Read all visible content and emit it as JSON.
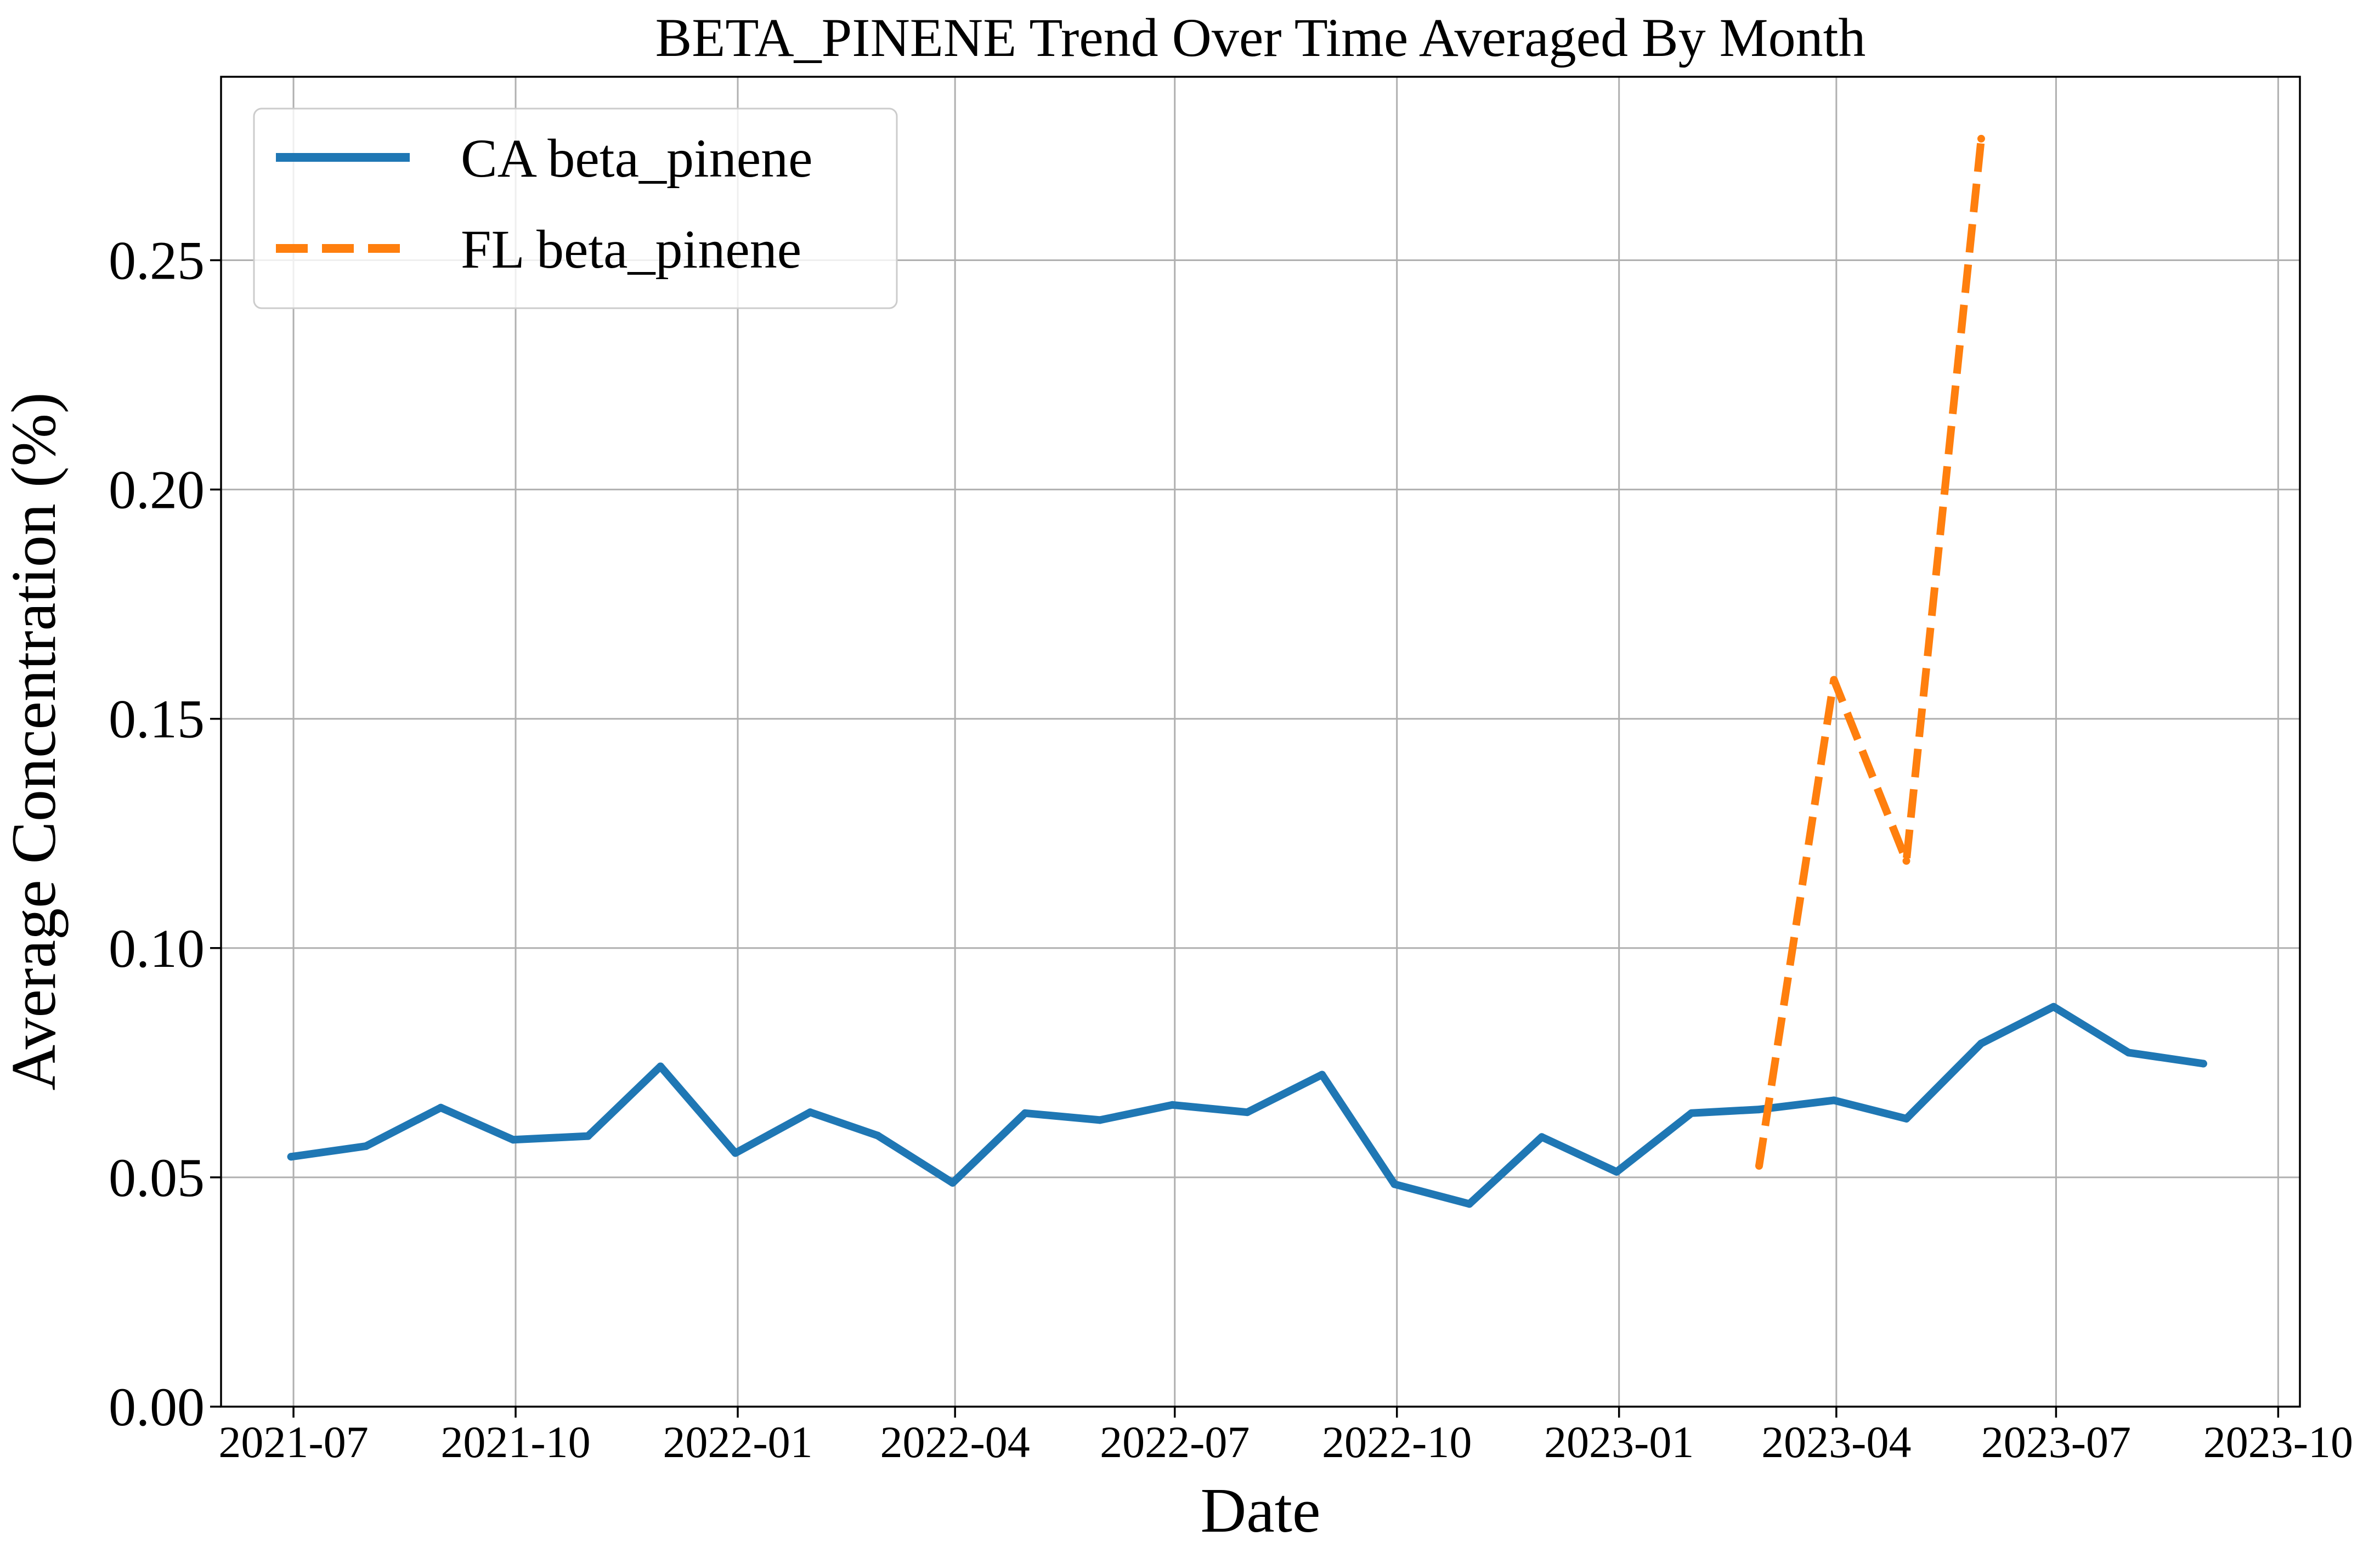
{
  "chart_data": {
    "type": "line",
    "title": "BETA_PINENE Trend Over Time Averaged By Month",
    "xlabel": "Date",
    "ylabel": "Average Concentration (%)",
    "xlim": [
      "2021-06-01",
      "2023-10-10"
    ],
    "ylim": [
      0,
      0.29
    ],
    "xticks": [
      "2021-07",
      "2021-10",
      "2022-01",
      "2022-04",
      "2022-07",
      "2022-10",
      "2023-01",
      "2023-04",
      "2023-07",
      "2023-10"
    ],
    "yticks": [
      "0.00",
      "0.05",
      "0.10",
      "0.15",
      "0.20",
      "0.25"
    ],
    "grid": true,
    "legend_position": "top-left",
    "series": [
      {
        "name": "CA beta_pinene",
        "color": "#1f77b4",
        "style": "solid",
        "points": [
          {
            "x": "2021-06-30",
            "y": 0.0545
          },
          {
            "x": "2021-07-31",
            "y": 0.0568
          },
          {
            "x": "2021-08-31",
            "y": 0.0652
          },
          {
            "x": "2021-09-30",
            "y": 0.0582
          },
          {
            "x": "2021-10-31",
            "y": 0.059
          },
          {
            "x": "2021-11-30",
            "y": 0.0742
          },
          {
            "x": "2021-12-31",
            "y": 0.0553
          },
          {
            "x": "2022-01-31",
            "y": 0.0642
          },
          {
            "x": "2022-02-28",
            "y": 0.0591
          },
          {
            "x": "2022-03-31",
            "y": 0.0488
          },
          {
            "x": "2022-04-30",
            "y": 0.064
          },
          {
            "x": "2022-05-31",
            "y": 0.0625
          },
          {
            "x": "2022-06-30",
            "y": 0.0658
          },
          {
            "x": "2022-07-31",
            "y": 0.0642
          },
          {
            "x": "2022-08-31",
            "y": 0.0724
          },
          {
            "x": "2022-09-30",
            "y": 0.0485
          },
          {
            "x": "2022-10-31",
            "y": 0.0442
          },
          {
            "x": "2022-11-30",
            "y": 0.0588
          },
          {
            "x": "2022-12-31",
            "y": 0.0512
          },
          {
            "x": "2023-01-31",
            "y": 0.064
          },
          {
            "x": "2023-02-28",
            "y": 0.0648
          },
          {
            "x": "2023-03-31",
            "y": 0.0668
          },
          {
            "x": "2023-04-30",
            "y": 0.0628
          },
          {
            "x": "2023-05-31",
            "y": 0.0792
          },
          {
            "x": "2023-06-30",
            "y": 0.0872
          },
          {
            "x": "2023-07-31",
            "y": 0.0772
          },
          {
            "x": "2023-08-31",
            "y": 0.0748
          }
        ]
      },
      {
        "name": "FL beta_pinene",
        "color": "#ff7f0e",
        "style": "dashed",
        "points": [
          {
            "x": "2023-02-28",
            "y": 0.0525
          },
          {
            "x": "2023-03-31",
            "y": 0.1585
          },
          {
            "x": "2023-04-30",
            "y": 0.119
          },
          {
            "x": "2023-05-31",
            "y": 0.2765
          }
        ]
      }
    ]
  }
}
